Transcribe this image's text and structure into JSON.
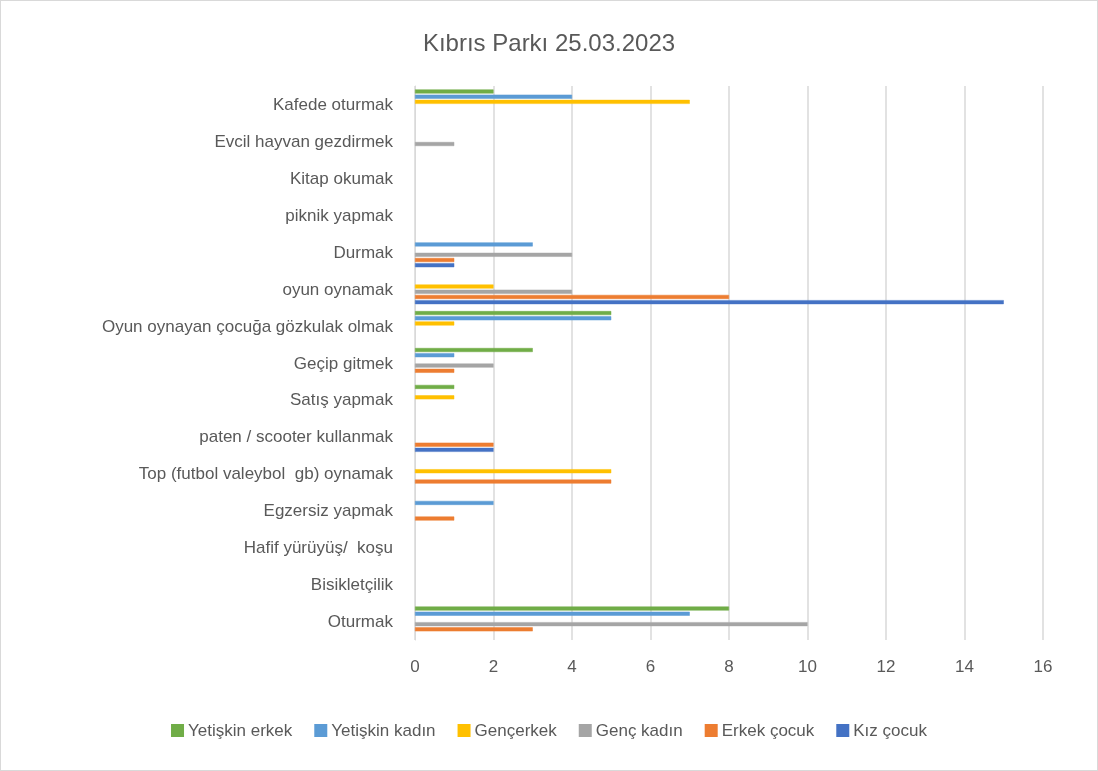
{
  "chart_data": {
    "type": "bar",
    "orientation": "horizontal",
    "title": "Kıbrıs Parkı 25.03.2023",
    "categories": [
      "Kafede oturmak",
      "Evcil hayvan gezdirmek",
      "Kitap okumak",
      "piknik yapmak",
      "Durmak",
      "oyun oynamak",
      "Oyun oynayan çocuğa gözkulak olmak",
      "Geçip gitmek",
      "Satış yapmak",
      "paten / scooter kullanmak",
      "Top (futbol valeybol  gb) oynamak",
      "Egzersiz yapmak",
      "Hafif yürüyüş/  koşu",
      "Bisikletçilik",
      "Oturmak"
    ],
    "series": [
      {
        "name": "Yetişkin erkek",
        "color": "#70ad47",
        "values": [
          2,
          null,
          null,
          null,
          null,
          null,
          5,
          3,
          1,
          null,
          null,
          null,
          null,
          null,
          8
        ]
      },
      {
        "name": "Yetişkin kadın",
        "color": "#5b9bd5",
        "values": [
          4,
          null,
          null,
          null,
          3,
          null,
          5,
          1,
          null,
          null,
          null,
          2,
          null,
          null,
          7
        ]
      },
      {
        "name": "Gençerkek",
        "color": "#ffc000",
        "values": [
          7,
          null,
          null,
          null,
          null,
          2,
          1,
          null,
          1,
          null,
          5,
          null,
          null,
          null,
          null
        ]
      },
      {
        "name": "Genç kadın",
        "color": "#a5a5a5",
        "values": [
          null,
          1,
          null,
          null,
          4,
          4,
          null,
          2,
          null,
          null,
          null,
          null,
          null,
          null,
          10
        ]
      },
      {
        "name": "Erkek çocuk",
        "color": "#ed7d31",
        "values": [
          null,
          null,
          null,
          null,
          1,
          8,
          null,
          1,
          null,
          2,
          5,
          1,
          null,
          null,
          3
        ]
      },
      {
        "name": "Kız çocuk",
        "color": "#4472c4",
        "values": [
          null,
          null,
          null,
          null,
          1,
          15,
          null,
          null,
          null,
          2,
          null,
          null,
          null,
          null,
          null
        ]
      }
    ],
    "xlim": [
      0,
      16
    ],
    "xticks": [
      0,
      2,
      4,
      6,
      8,
      10,
      12,
      14,
      16
    ],
    "grid": "x",
    "legend": "bottom"
  }
}
